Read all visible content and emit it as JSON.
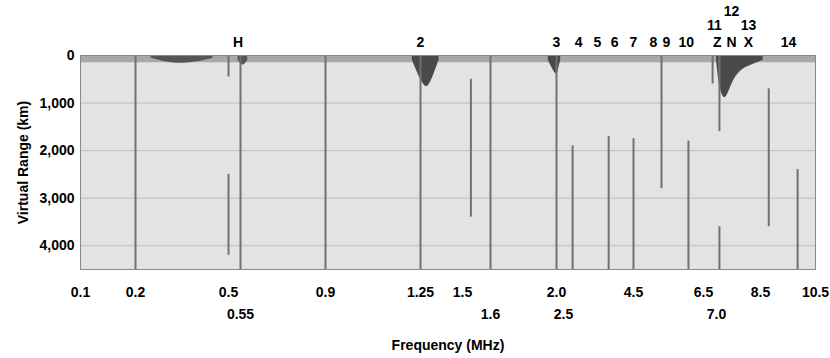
{
  "chart_data": {
    "type": "ionogram",
    "xlabel": "Frequency (MHz)",
    "ylabel": "Virtual Range (km)",
    "xlim": [
      0.1,
      10.5
    ],
    "ylim": [
      4500,
      0
    ],
    "xticks": [
      0.1,
      0.2,
      0.5,
      0.55,
      0.9,
      1.25,
      1.5,
      1.6,
      {
        "value": 2,
        "label": "2.0"
      },
      2.5,
      4.5,
      6.5,
      {
        "value": 7,
        "label": "7.0"
      },
      8.5,
      10.5
    ],
    "yticks": [
      0,
      1000,
      2000,
      3000,
      4000
    ],
    "grid": true,
    "annotations": [
      {
        "x": 0.54,
        "label": "H"
      },
      {
        "x": 1.25,
        "label": "2"
      },
      {
        "x": 2.0,
        "label": "3"
      },
      {
        "x": 2.93,
        "label": "4"
      },
      {
        "x": 3.47,
        "label": "5"
      },
      {
        "x": 3.96,
        "label": "6"
      },
      {
        "x": 4.5,
        "label": "7"
      },
      {
        "x": 5.07,
        "label": "8"
      },
      {
        "x": 5.44,
        "label": "9"
      },
      {
        "x": 6.01,
        "label": "10"
      },
      {
        "x": 7.03,
        "label": "Z"
      },
      {
        "x": 7.51,
        "label": "N"
      },
      {
        "x": 8.09,
        "label": "X"
      },
      {
        "x": 6.92,
        "label": "11"
      },
      {
        "x": 7.51,
        "label": "12"
      },
      {
        "x": 8.09,
        "label": "13"
      },
      {
        "x": 9.52,
        "label": "14"
      }
    ],
    "lines": {
      "color": "#707070",
      "segments": [
        {
          "x": 0.2,
          "y1": 0,
          "y2": 4500
        },
        {
          "x": 0.5,
          "y1": 0,
          "y2": 450
        },
        {
          "x": 0.5,
          "y1": 2500,
          "y2": 4200
        },
        {
          "x": 0.55,
          "y1": 0,
          "y2": 4500
        },
        {
          "x": 0.9,
          "y1": 0,
          "y2": 4500
        },
        {
          "x": 1.25,
          "y1": 0,
          "y2": 4500
        },
        {
          "x": 1.53,
          "y1": 500,
          "y2": 3400
        },
        {
          "x": 1.6,
          "y1": 0,
          "y2": 4500
        },
        {
          "x": 2.0,
          "y1": 0,
          "y2": 4500
        },
        {
          "x": 2.76,
          "y1": 1900,
          "y2": 4500
        },
        {
          "x": 3.79,
          "y1": 1700,
          "y2": 4500
        },
        {
          "x": 4.5,
          "y1": 1750,
          "y2": 4500
        },
        {
          "x": 5.3,
          "y1": 0,
          "y2": 2800
        },
        {
          "x": 6.07,
          "y1": 1800,
          "y2": 4500
        },
        {
          "x": 6.85,
          "y1": 0,
          "y2": 600
        },
        {
          "x": 7.1,
          "y1": 0,
          "y2": 1600
        },
        {
          "x": 7.1,
          "y1": 3600,
          "y2": 4500
        },
        {
          "x": 8.8,
          "y1": 700,
          "y2": 3600
        },
        {
          "x": 9.85,
          "y1": 2400,
          "y2": 4500
        }
      ]
    },
    "echoes": [
      {
        "color": "#a8a8a8",
        "x": [
          0.1,
          10.5
        ],
        "depth": [
          150,
          150
        ]
      },
      {
        "color": "#555555",
        "x": [
          0.25,
          0.3,
          0.35,
          0.4,
          0.45
        ],
        "depth": [
          50,
          150,
          170,
          140,
          60
        ]
      },
      {
        "color": "#555555",
        "x": [
          0.54,
          0.56,
          0.58
        ],
        "depth": [
          100,
          250,
          100
        ]
      },
      {
        "color": "#4a4a4a",
        "x": [
          1.22,
          1.26,
          1.29,
          1.32,
          1.36
        ],
        "depth": [
          100,
          600,
          700,
          500,
          100
        ]
      },
      {
        "color": "#4a4a4a",
        "x": [
          1.95,
          2.0,
          2.1,
          2.3
        ],
        "depth": [
          100,
          450,
          350,
          100
        ]
      },
      {
        "color": "#4a4a4a",
        "x": [
          7.0,
          7.1,
          7.3,
          7.5,
          7.8,
          8.2,
          8.6
        ],
        "depth": [
          100,
          700,
          1000,
          600,
          300,
          200,
          100
        ]
      }
    ]
  }
}
